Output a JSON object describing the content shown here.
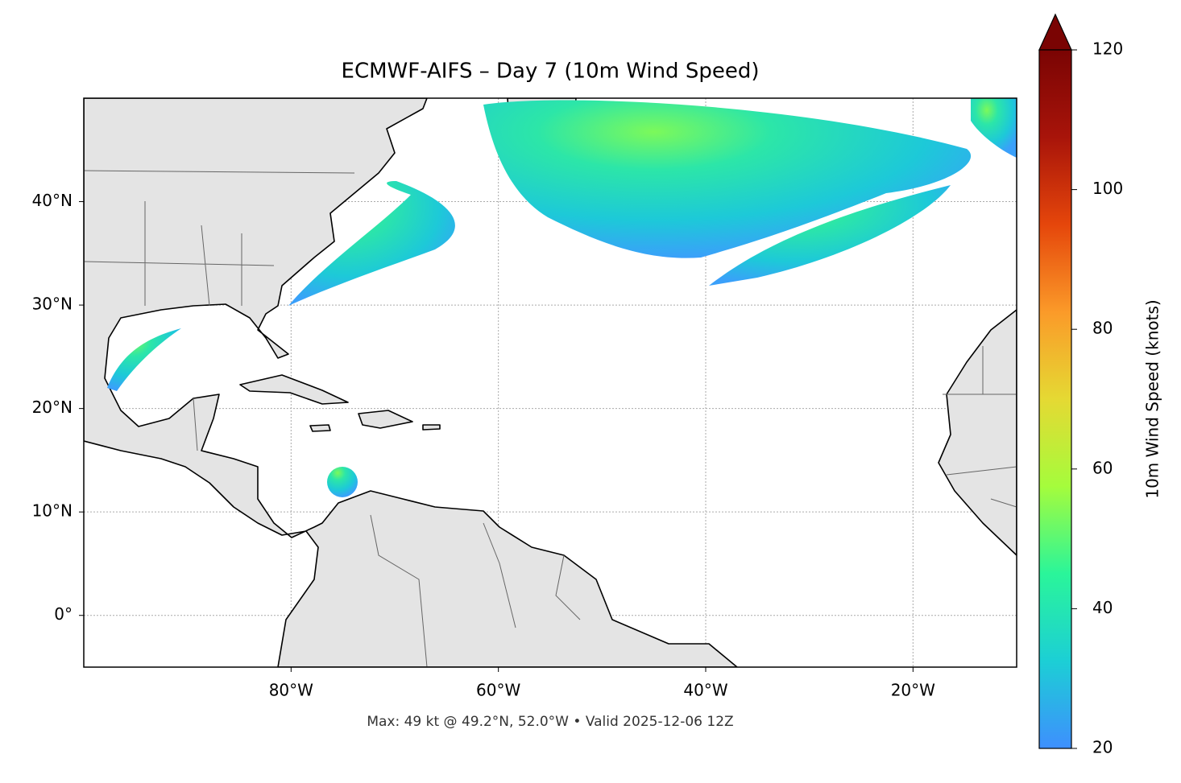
{
  "chart_data": {
    "type": "map",
    "title": "ECMWF-AIFS – Day 7 (10m Wind Speed)",
    "footer": "Max: 49 kt @ 49.2°N, 52.0°W • Valid 2025-12-06 12Z",
    "xlim": [
      -100,
      -10
    ],
    "ylim": [
      -5,
      50
    ],
    "xticks": [
      {
        "value": -80,
        "label": "80°W"
      },
      {
        "value": -60,
        "label": "60°W"
      },
      {
        "value": -40,
        "label": "40°W"
      },
      {
        "value": -20,
        "label": "20°W"
      }
    ],
    "yticks": [
      {
        "value": 0,
        "label": "0°"
      },
      {
        "value": 10,
        "label": "10°N"
      },
      {
        "value": 20,
        "label": "20°N"
      },
      {
        "value": 30,
        "label": "30°N"
      },
      {
        "value": 40,
        "label": "40°N"
      }
    ],
    "grid": true,
    "colorbar": {
      "label": "10m Wind Speed (knots)",
      "lim": [
        20,
        120
      ],
      "ticks": [
        20,
        40,
        60,
        80,
        100,
        120
      ],
      "colors": [
        "#3e8ffe",
        "#1ccfd5",
        "#2af59a",
        "#a5fc3c",
        "#e5d933",
        "#fb9a29",
        "#e5460b",
        "#a8140a",
        "#7a0403"
      ]
    }
  }
}
